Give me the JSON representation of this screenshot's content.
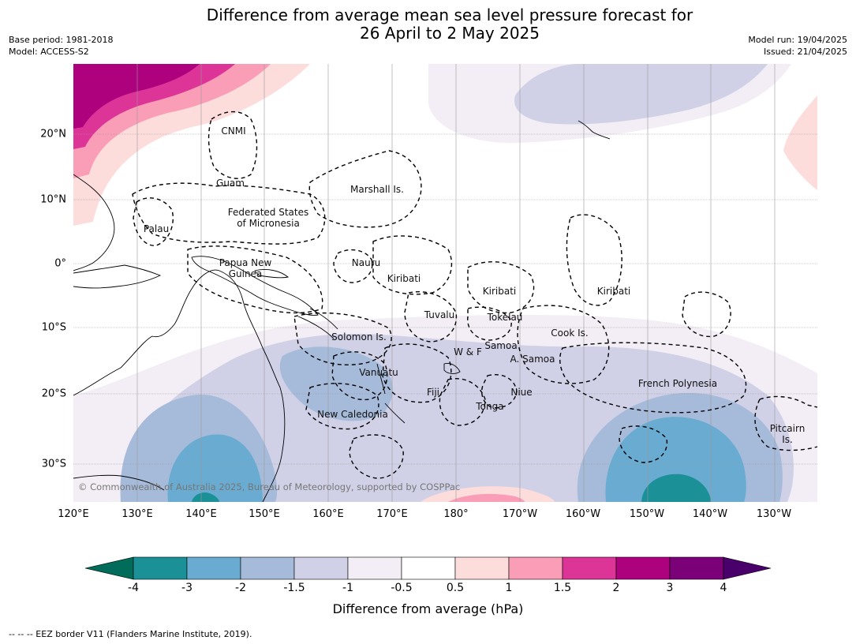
{
  "title_line1": "Difference from average mean sea level pressure forecast for",
  "title_line2": "26 April to 2 May 2025",
  "meta_left": [
    "Base period: 1981-2018",
    "Model: ACCESS-S2"
  ],
  "meta_right": [
    "Model run: 19/04/2025",
    "Issued: 21/04/2025"
  ],
  "lon_labels": [
    "120°E",
    "130°E",
    "140°E",
    "150°E",
    "160°E",
    "170°E",
    "180°",
    "170°W",
    "160°W",
    "150°W",
    "140°W",
    "130°W"
  ],
  "lat_labels": [
    "20°N",
    "10°N",
    "0°",
    "10°S",
    "20°S",
    "30°S"
  ],
  "places": [
    {
      "name": "cnmi-label",
      "text": "CNMI"
    },
    {
      "name": "guam-label",
      "text": "Guam"
    },
    {
      "name": "marshall-label",
      "text": "Marshall Is."
    },
    {
      "name": "fsm-label",
      "text": "Federated States\nof Micronesia"
    },
    {
      "name": "palau-label",
      "text": "Palau"
    },
    {
      "name": "png-label",
      "text": "Papua New\nGuinea"
    },
    {
      "name": "nauru-label",
      "text": "Nauru"
    },
    {
      "name": "kiribati-west-label",
      "text": "Kiribati"
    },
    {
      "name": "kiribati-central-label",
      "text": "Kiribati"
    },
    {
      "name": "kiribati-east-label",
      "text": "Kiribati"
    },
    {
      "name": "tuvalu-label",
      "text": "Tuvalu"
    },
    {
      "name": "tokelau-label",
      "text": "Tokelau"
    },
    {
      "name": "cook-label",
      "text": "Cook Is."
    },
    {
      "name": "solomon-label",
      "text": "Solomon Is."
    },
    {
      "name": "samoa-label",
      "text": "Samoa"
    },
    {
      "name": "wf-label",
      "text": "W & F"
    },
    {
      "name": "asamoa-label",
      "text": "A. Samoa"
    },
    {
      "name": "vanuatu-label",
      "text": "Vanuatu"
    },
    {
      "name": "fiji-label",
      "text": "Fiji"
    },
    {
      "name": "niue-label",
      "text": "Niue"
    },
    {
      "name": "frenchpoly-label",
      "text": "French Polynesia"
    },
    {
      "name": "tonga-label",
      "text": "Tonga"
    },
    {
      "name": "newcal-label",
      "text": "New Caledonia"
    },
    {
      "name": "pitcairn-label",
      "text": "Pitcairn\nIs."
    }
  ],
  "copyright": "© Commonwealth of Australia 2025, Bureau of Meteorology, supported by COSPPac",
  "colorbar": {
    "ticks": [
      "-4",
      "-3",
      "-2",
      "-1.5",
      "-1",
      "-0.5",
      "0.5",
      "1",
      "1.5",
      "2",
      "3",
      "4"
    ],
    "colors": [
      "#1b9097",
      "#69abd1",
      "#a6bbd9",
      "#d0d1e6",
      "#f3eef5",
      "#ffffff",
      "#fddcdc",
      "#f99eb6",
      "#dd3497",
      "#ae017e",
      "#7a0177"
    ],
    "under_color": "#016c59",
    "over_color": "#49006a",
    "label": "Difference from average (hPa)"
  },
  "legend_note": "--  --  -- EEZ border V11 (Flanders Marine Institute, 2019)."
}
